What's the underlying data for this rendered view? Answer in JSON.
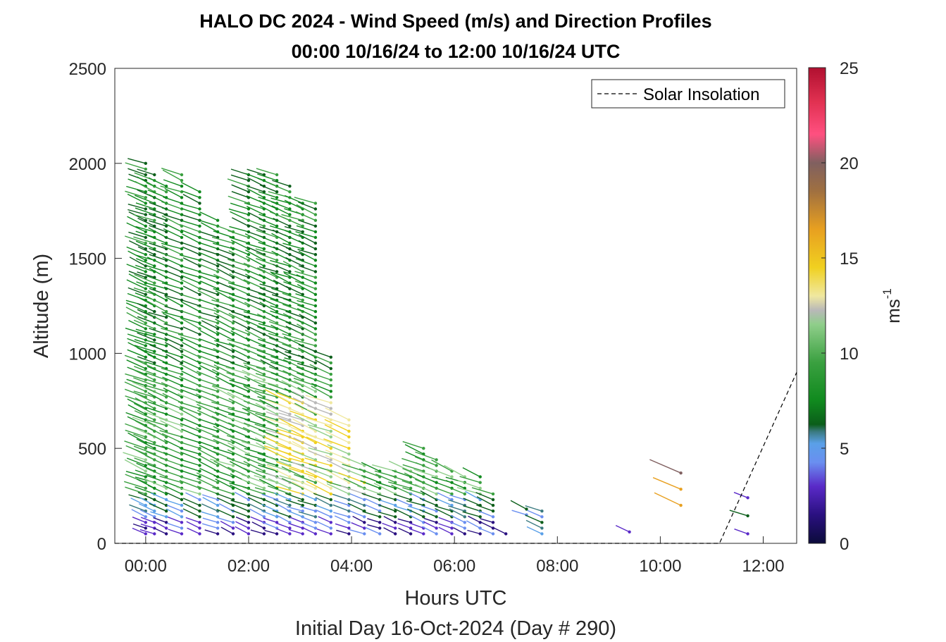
{
  "chart_data": {
    "type": "wind-barb-profile",
    "title": "HALO DC 2024 - Wind Speed (m/s) and Direction Profiles",
    "subtitle": "00:00 10/16/24 to 12:00 10/16/24  UTC",
    "xlabel": "Hours UTC",
    "xlabel2": "Initial Day 16-Oct-2024 (Day # 290)",
    "ylabel": "Altitude (m)",
    "xlim": [
      -0.6,
      12.65
    ],
    "ylim": [
      0,
      2500
    ],
    "x_ticks": [
      {
        "value": 0,
        "label": "00:00"
      },
      {
        "value": 2,
        "label": "02:00"
      },
      {
        "value": 4,
        "label": "04:00"
      },
      {
        "value": 6,
        "label": "06:00"
      },
      {
        "value": 8,
        "label": "08:00"
      },
      {
        "value": 10,
        "label": "10:00"
      },
      {
        "value": 12,
        "label": "12:00"
      }
    ],
    "y_ticks": [
      {
        "value": 0,
        "label": "0"
      },
      {
        "value": 500,
        "label": "500"
      },
      {
        "value": 1000,
        "label": "1000"
      },
      {
        "value": 1500,
        "label": "1500"
      },
      {
        "value": 2000,
        "label": "2000"
      },
      {
        "value": 2500,
        "label": "2500"
      }
    ],
    "colorbar": {
      "label": "ms",
      "label_exponent": "-1",
      "range": [
        0,
        25
      ],
      "ticks": [
        {
          "value": 0,
          "label": "0"
        },
        {
          "value": 5,
          "label": "5"
        },
        {
          "value": 10,
          "label": "10"
        },
        {
          "value": 15,
          "label": "15"
        },
        {
          "value": 20,
          "label": "20"
        },
        {
          "value": 25,
          "label": "25"
        }
      ]
    },
    "legend": {
      "entries": [
        {
          "name": "Solar Insolation",
          "style": "dashed"
        }
      ],
      "position": "top-right"
    },
    "solar_insolation": {
      "x": [
        -0.6,
        11.15,
        12.65
      ],
      "y": [
        0,
        0,
        900
      ]
    },
    "wind_columns": [
      {
        "t": 0.0,
        "ztop": 2000,
        "zbot": 50,
        "dz": 30
      },
      {
        "t": 0.17,
        "ztop": 1950,
        "zbot": 50,
        "dz": 30
      },
      {
        "t": 0.4,
        "ztop": 1900,
        "zbot": 50,
        "dz": 30
      },
      {
        "t": 0.7,
        "ztop": 1950,
        "zbot": 50,
        "dz": 30
      },
      {
        "t": 1.05,
        "ztop": 1850,
        "zbot": 50,
        "dz": 30
      },
      {
        "t": 1.4,
        "ztop": 1700,
        "zbot": 50,
        "dz": 30
      },
      {
        "t": 1.7,
        "ztop": 1650,
        "zbot": 50,
        "dz": 30
      },
      {
        "t": 2.0,
        "ztop": 1950,
        "zbot": 50,
        "dz": 30
      },
      {
        "t": 2.3,
        "ztop": 1950,
        "zbot": 50,
        "dz": 30
      },
      {
        "t": 2.55,
        "ztop": 1950,
        "zbot": 50,
        "dz": 30
      },
      {
        "t": 2.8,
        "ztop": 1900,
        "zbot": 50,
        "dz": 30
      },
      {
        "t": 3.05,
        "ztop": 1800,
        "zbot": 50,
        "dz": 30
      },
      {
        "t": 3.3,
        "ztop": 1800,
        "zbot": 50,
        "dz": 30
      },
      {
        "t": 3.6,
        "ztop": 1000,
        "zbot": 50,
        "dz": 30
      },
      {
        "t": 3.95,
        "ztop": 650,
        "zbot": 50,
        "dz": 30
      },
      {
        "t": 4.25,
        "ztop": 420,
        "zbot": 50,
        "dz": 30
      },
      {
        "t": 4.55,
        "ztop": 390,
        "zbot": 50,
        "dz": 30
      },
      {
        "t": 4.85,
        "ztop": 380,
        "zbot": 50,
        "dz": 30
      },
      {
        "t": 5.15,
        "ztop": 380,
        "zbot": 50,
        "dz": 30
      },
      {
        "t": 5.4,
        "ztop": 500,
        "zbot": 50,
        "dz": 30
      },
      {
        "t": 5.65,
        "ztop": 460,
        "zbot": 50,
        "dz": 30
      },
      {
        "t": 5.95,
        "ztop": 380,
        "zbot": 50,
        "dz": 30
      },
      {
        "t": 6.2,
        "ztop": 370,
        "zbot": 50,
        "dz": 30
      },
      {
        "t": 6.5,
        "ztop": 360,
        "zbot": 50,
        "dz": 30
      },
      {
        "t": 6.75,
        "ztop": 280,
        "zbot": 50,
        "dz": 30
      },
      {
        "t": 7.0,
        "ztop": 50,
        "zbot": 50,
        "dz": 30
      },
      {
        "t": 7.4,
        "ztop": 200,
        "zbot": 150,
        "dz": 30
      },
      {
        "t": 7.7,
        "ztop": 180,
        "zbot": 50,
        "dz": 30
      },
      {
        "t": 9.4,
        "ztop": 60,
        "zbot": 60,
        "dz": 30
      },
      {
        "t": 10.4,
        "ztop": 370,
        "zbot": 200,
        "dz": 85
      },
      {
        "t": 11.7,
        "ztop": 240,
        "zbot": 50,
        "dz": 95
      }
    ]
  }
}
